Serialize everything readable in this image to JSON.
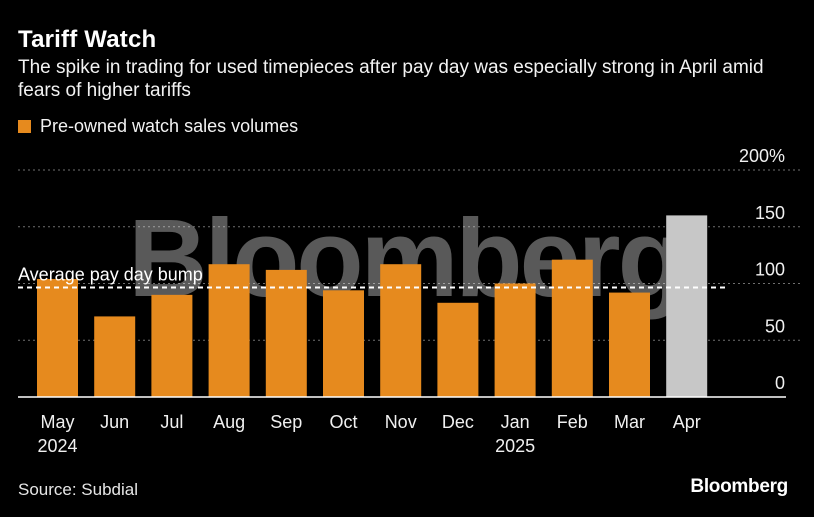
{
  "title": "Tariff Watch",
  "subtitle": "The spike in trading for used timepieces after pay day was especially strong in April amid fears of higher tariffs",
  "legend": {
    "label": "Pre-owned watch sales volumes",
    "color": "#e68a1e"
  },
  "source": "Source: Subdial",
  "brand": "Bloomberg",
  "watermark": "Bloomberg",
  "chart_data": {
    "type": "bar",
    "categories": [
      "May",
      "Jun",
      "Jul",
      "Aug",
      "Sep",
      "Oct",
      "Nov",
      "Dec",
      "Jan",
      "Feb",
      "Mar",
      "Apr"
    ],
    "year_labels": [
      "2024",
      "",
      "",
      "",
      "",
      "",
      "",
      "",
      "2025",
      "",
      "",
      ""
    ],
    "values": [
      104,
      71,
      90,
      117,
      112,
      94,
      117,
      83,
      100,
      121,
      92,
      160
    ],
    "highlight_index": 11,
    "colors": {
      "default": "#e68a1e",
      "highlight": "#c7c7c7"
    },
    "ylim": [
      0,
      200
    ],
    "yticks": [
      0,
      50,
      100,
      150,
      200
    ],
    "ytick_labels": [
      "0",
      "50",
      "100",
      "150",
      "200%"
    ],
    "reference_line": {
      "value": 100,
      "label": "Average pay day bump"
    },
    "series_name": "Pre-owned watch sales volumes",
    "xlabel": "",
    "ylabel": ""
  }
}
